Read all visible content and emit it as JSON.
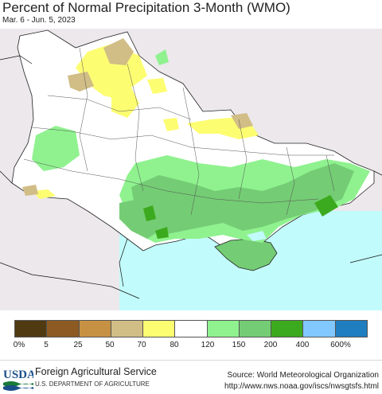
{
  "header": {
    "title": "Percent of Normal Precipitation 3-Month (WMO)",
    "subtitle": "Mar. 6 - Jun. 5, 2023"
  },
  "legend": {
    "colors": [
      "#4f3a12",
      "#8c5a22",
      "#c79143",
      "#d1bd86",
      "#fdfd72",
      "#ffffff",
      "#8ff28f",
      "#74cc74",
      "#3caa1e",
      "#80c8ff",
      "#1f7ebf"
    ],
    "labels": [
      "0%",
      "5",
      "25",
      "50",
      "70",
      "80",
      "120",
      "150",
      "200",
      "400",
      "600%"
    ]
  },
  "map_colors": {
    "sea": "#c2fbfb",
    "land": "#ffffff",
    "outside": "#ece8ec"
  },
  "footer": {
    "agency": "Foreign Agricultural Service",
    "department": "U.S. DEPARTMENT OF AGRICULTURE",
    "logo_text": "USDA",
    "source": "Source: World Meteorological Organization",
    "url": "http://www.nws.noaa.gov/iscs/nwsgtsfs.html"
  }
}
